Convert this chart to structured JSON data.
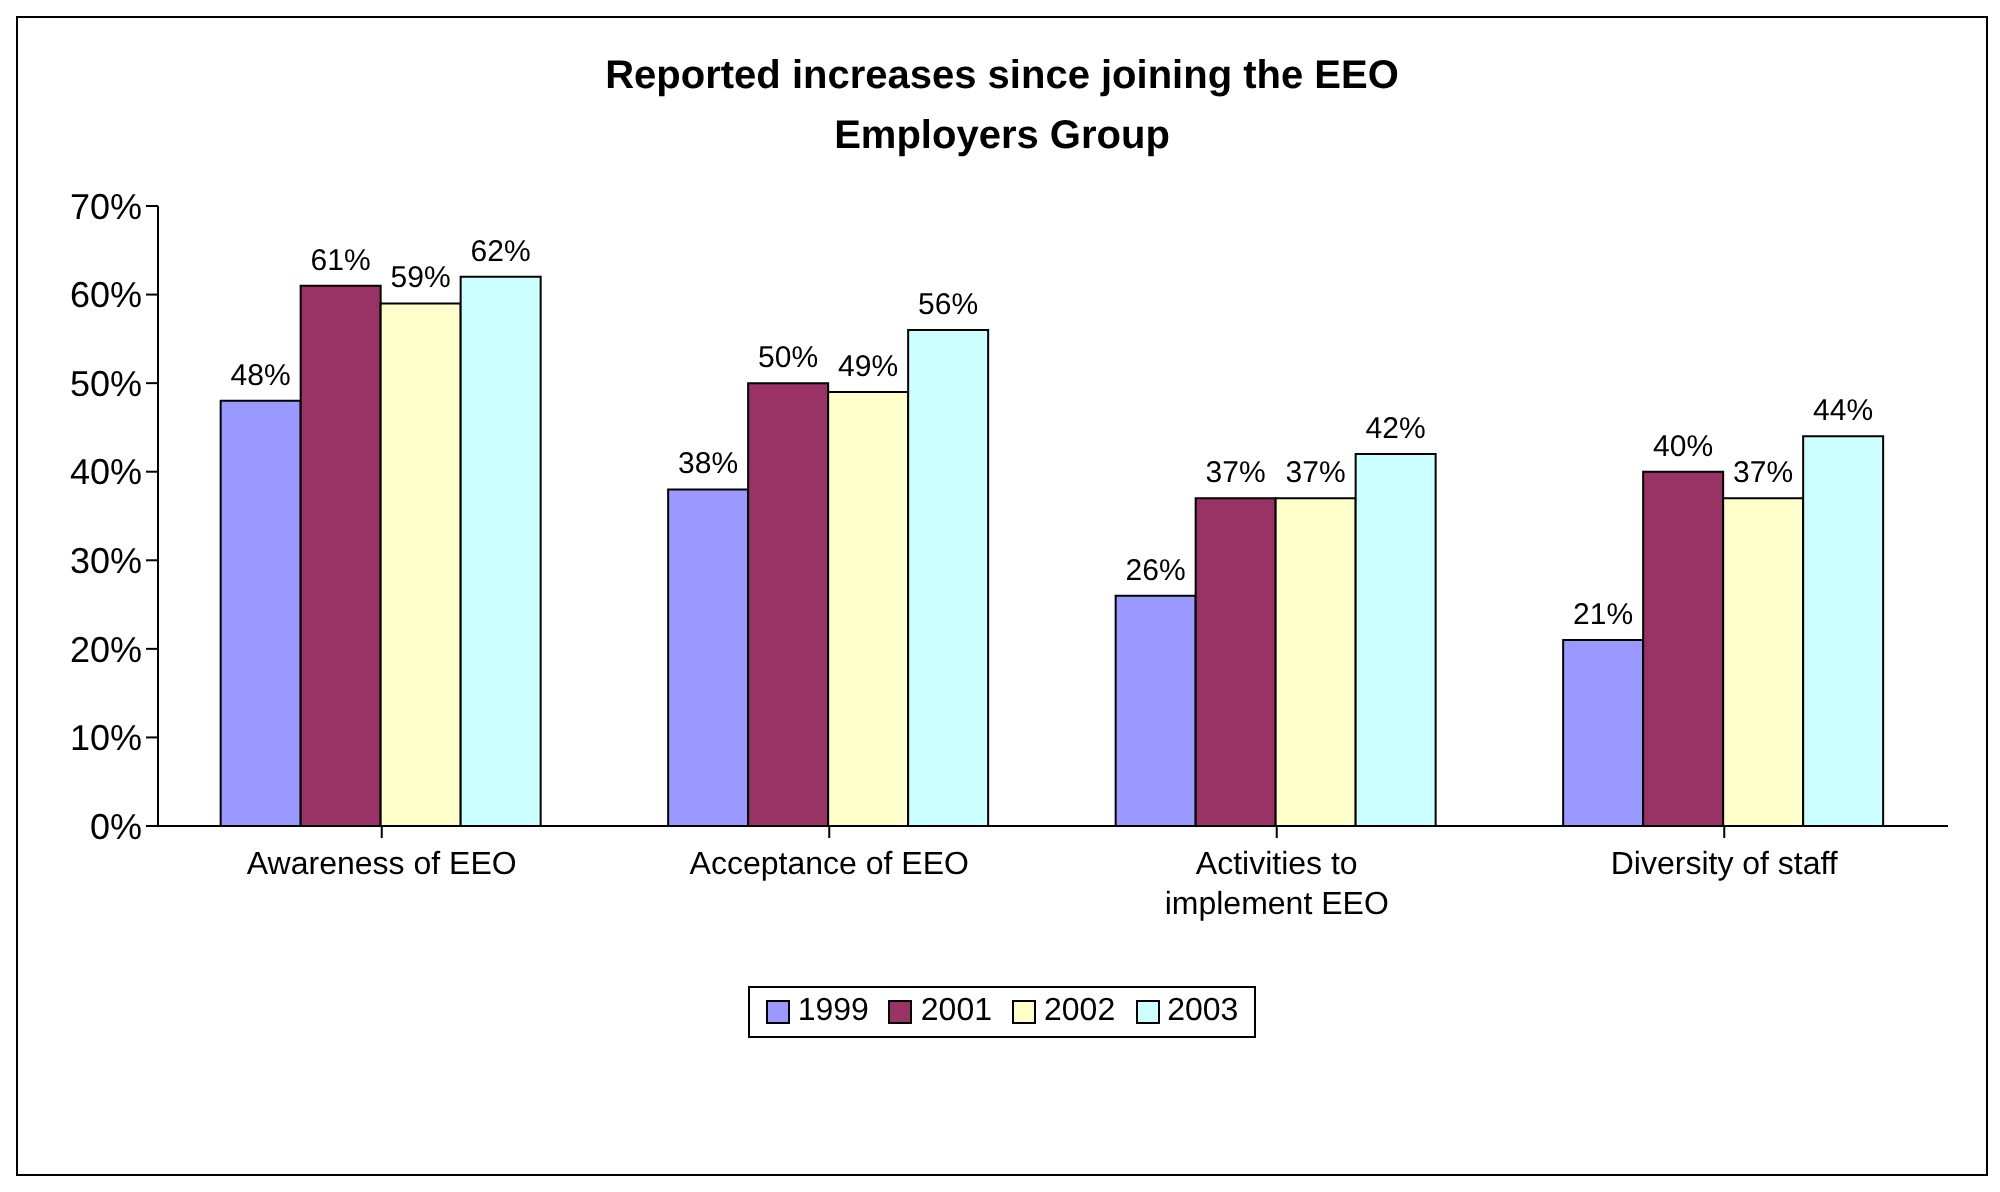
{
  "chart_data": {
    "type": "bar",
    "title": "Reported increases since joining the EEO Employers Group",
    "categories": [
      "Awareness of EEO",
      "Acceptance of EEO",
      "Activities to implement EEO",
      "Diversity of staff"
    ],
    "series": [
      {
        "name": "1999",
        "color": "#9999ff",
        "values": [
          48,
          38,
          26,
          21
        ],
        "value_labels": [
          "48%",
          "38%",
          "26%",
          "21%"
        ]
      },
      {
        "name": "2001",
        "color": "#993366",
        "values": [
          61,
          50,
          37,
          40
        ],
        "value_labels": [
          "61%",
          "50%",
          "37%",
          "40%"
        ]
      },
      {
        "name": "2002",
        "color": "#ffffcc",
        "values": [
          59,
          49,
          37,
          37
        ],
        "value_labels": [
          "59%",
          "49%",
          "37%",
          "37%"
        ]
      },
      {
        "name": "2003",
        "color": "#ccffff",
        "values": [
          62,
          56,
          42,
          44
        ],
        "value_labels": [
          "62%",
          "56%",
          "42%",
          "44%"
        ]
      }
    ],
    "ylim": [
      0,
      70
    ],
    "yticks": [
      {
        "value": 0,
        "label": "0%"
      },
      {
        "value": 10,
        "label": "10%"
      },
      {
        "value": 20,
        "label": "20%"
      },
      {
        "value": 30,
        "label": "30%"
      },
      {
        "value": 40,
        "label": "40%"
      },
      {
        "value": 50,
        "label": "50%"
      },
      {
        "value": 60,
        "label": "60%"
      },
      {
        "value": 70,
        "label": "70%"
      }
    ],
    "grid": false,
    "legend": "bottom"
  }
}
